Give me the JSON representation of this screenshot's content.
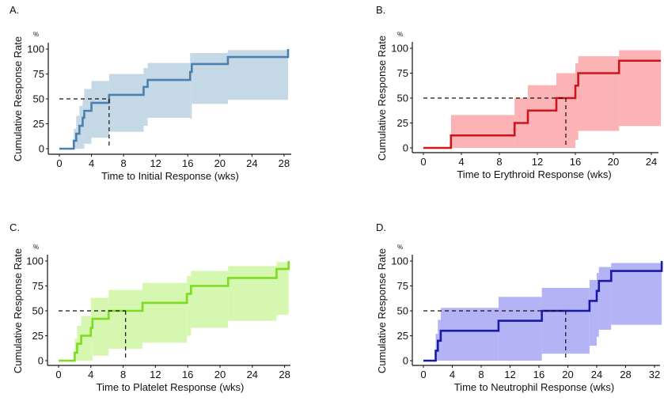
{
  "chart_data": [
    {
      "type": "line",
      "panel_label": "A.",
      "xlabel": "Time to Initial Response (wks)",
      "ylabel": "Cumulative Response Rate",
      "yunit": "%",
      "xlim": [
        0,
        28.5
      ],
      "ylim": [
        0,
        100
      ],
      "xticks": [
        0,
        4,
        8,
        12,
        16,
        20,
        24,
        28
      ],
      "yticks": [
        0,
        25,
        50,
        75,
        100
      ],
      "grid": false,
      "line_color": "#4a7fb0",
      "band_color": "#c5d8e6",
      "median": 6.2,
      "steps_x_y_lower_upper": [
        [
          0,
          0,
          0,
          0
        ],
        [
          1.8,
          8,
          0,
          20
        ],
        [
          2.1,
          15,
          0,
          33
        ],
        [
          2.5,
          23,
          0,
          43
        ],
        [
          2.9,
          31,
          0,
          50
        ],
        [
          3.1,
          38,
          5,
          60
        ],
        [
          4,
          46,
          11,
          68
        ],
        [
          6.2,
          54,
          17,
          75
        ],
        [
          10.5,
          62,
          23,
          81
        ],
        [
          11,
          69,
          31,
          86
        ],
        [
          16.3,
          77,
          30,
          96
        ],
        [
          16.5,
          85,
          45,
          96
        ],
        [
          21,
          92,
          49,
          99
        ],
        [
          28.5,
          100,
          49,
          99
        ]
      ],
      "x_end": 28.5
    },
    {
      "type": "line",
      "panel_label": "B.",
      "xlabel": "Time to Erythroid Response (wks)",
      "ylabel": "Cumulative Response Rate",
      "yunit": "%",
      "xlim": [
        0,
        25
      ],
      "ylim": [
        0,
        100
      ],
      "xticks": [
        0,
        4,
        8,
        12,
        16,
        20,
        24
      ],
      "yticks": [
        0,
        25,
        50,
        75,
        100
      ],
      "grid": false,
      "line_color": "#d0121b",
      "band_color": "#fbb3b5",
      "median": 15,
      "steps_x_y_lower_upper": [
        [
          0,
          0,
          0,
          0
        ],
        [
          2.9,
          12.5,
          0,
          33
        ],
        [
          9.6,
          25,
          0,
          50
        ],
        [
          11,
          37.5,
          0,
          63
        ],
        [
          14,
          50,
          0,
          75
        ],
        [
          16,
          62.5,
          8,
          85
        ],
        [
          16.3,
          75,
          17,
          92
        ],
        [
          20.6,
          87.5,
          22,
          98
        ]
      ],
      "x_end": 25
    },
    {
      "type": "line",
      "panel_label": "C.",
      "xlabel": "Time to Platelet Response (wks)",
      "ylabel": "Cumulative Response Rate",
      "yunit": "%",
      "xlim": [
        0,
        28.5
      ],
      "ylim": [
        0,
        100
      ],
      "xticks": [
        0,
        4,
        8,
        12,
        16,
        20,
        24,
        28
      ],
      "yticks": [
        0,
        25,
        50,
        75,
        100
      ],
      "grid": false,
      "line_color": "#7ddc1f",
      "band_color": "#d6f7b0",
      "median": 8.3,
      "steps_x_y_lower_upper": [
        [
          0,
          0,
          0,
          0
        ],
        [
          2,
          8,
          0,
          22
        ],
        [
          2.3,
          17,
          0,
          35
        ],
        [
          2.8,
          25,
          0,
          45
        ],
        [
          4,
          33,
          0,
          63
        ],
        [
          4.2,
          42,
          5,
          63
        ],
        [
          6.2,
          50,
          12,
          71
        ],
        [
          10.4,
          58,
          18,
          78
        ],
        [
          15.9,
          67,
          25,
          85
        ],
        [
          16.4,
          75,
          33,
          90
        ],
        [
          21,
          83,
          40,
          95
        ],
        [
          27,
          92,
          46,
          99
        ],
        [
          28.5,
          100,
          46,
          99
        ]
      ],
      "x_end": 28.5
    },
    {
      "type": "line",
      "panel_label": "D.",
      "xlabel": "Time to Neutrophil Response (wks)",
      "ylabel": "Cumulative Response Rate",
      "yunit": "%",
      "xlim": [
        0,
        33
      ],
      "ylim": [
        0,
        100
      ],
      "xticks": [
        0,
        4,
        8,
        12,
        16,
        20,
        24,
        28,
        32
      ],
      "yticks": [
        0,
        25,
        50,
        75,
        100
      ],
      "grid": false,
      "line_color": "#1a1aa8",
      "band_color": "#b3b3f5",
      "median": 19.7,
      "steps_x_y_lower_upper": [
        [
          0,
          0,
          0,
          0
        ],
        [
          1.7,
          10,
          0,
          27
        ],
        [
          2,
          20,
          0,
          41
        ],
        [
          2.4,
          30,
          0,
          53
        ],
        [
          10.4,
          40,
          0,
          64
        ],
        [
          16.4,
          50,
          7,
          73
        ],
        [
          23,
          60,
          15,
          81
        ],
        [
          24,
          70,
          24,
          88
        ],
        [
          24.3,
          80,
          31,
          94
        ],
        [
          26,
          90,
          36,
          98
        ],
        [
          33,
          100,
          36,
          98
        ]
      ],
      "x_end": 33
    }
  ]
}
